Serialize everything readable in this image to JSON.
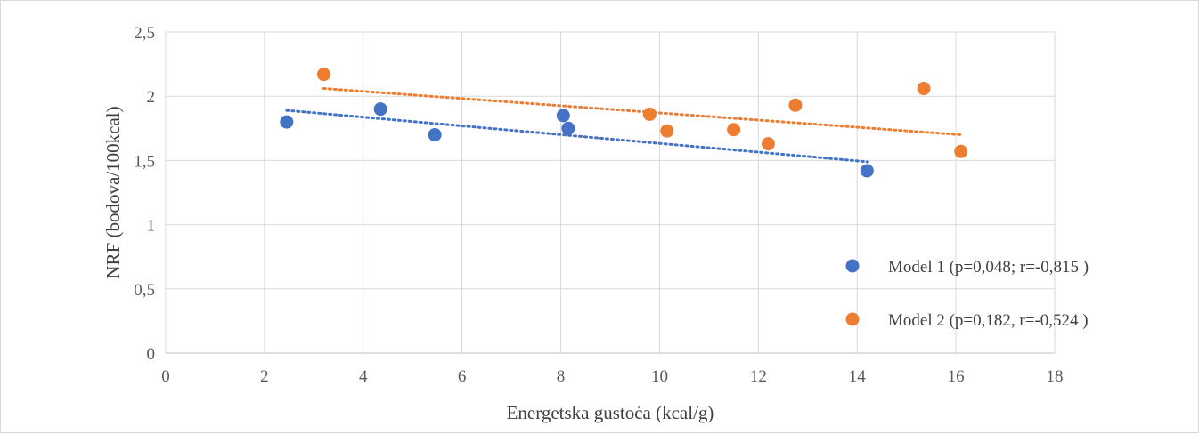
{
  "chart_data": {
    "type": "scatter",
    "xlabel": "Energetska gustoća (kcal/g)",
    "ylabel": "NRF (bodova/100kcal)",
    "xlim": [
      0,
      18
    ],
    "ylim": [
      0,
      2.5
    ],
    "x_ticks": [
      0,
      2,
      4,
      6,
      8,
      10,
      12,
      14,
      16,
      18
    ],
    "x_tick_labels": [
      "0",
      "2",
      "4",
      "6",
      "8",
      "10",
      "12",
      "14",
      "16",
      "18"
    ],
    "y_ticks": [
      0,
      0.5,
      1,
      1.5,
      2,
      2.5
    ],
    "y_tick_labels": [
      "0",
      "0,5",
      "1",
      "1,5",
      "2",
      "2,5"
    ],
    "grid": true,
    "legend_position": "bottom-right",
    "series": [
      {
        "name": "Model 1 (p=0,048; r=-0,815 )",
        "color": "#4472C4",
        "points": [
          {
            "x": 2.45,
            "y": 1.8
          },
          {
            "x": 4.35,
            "y": 1.9
          },
          {
            "x": 5.45,
            "y": 1.7
          },
          {
            "x": 8.05,
            "y": 1.85
          },
          {
            "x": 8.15,
            "y": 1.75
          },
          {
            "x": 14.2,
            "y": 1.42
          }
        ],
        "trendline": {
          "x": [
            2.45,
            14.2
          ],
          "y": [
            1.89,
            1.49
          ]
        }
      },
      {
        "name": "Model 2 (p=0,182, r=-0,524 )",
        "color": "#ED7D31",
        "points": [
          {
            "x": 3.2,
            "y": 2.17
          },
          {
            "x": 9.8,
            "y": 1.86
          },
          {
            "x": 10.15,
            "y": 1.73
          },
          {
            "x": 11.5,
            "y": 1.74
          },
          {
            "x": 12.2,
            "y": 1.63
          },
          {
            "x": 12.75,
            "y": 1.93
          },
          {
            "x": 15.35,
            "y": 2.06
          },
          {
            "x": 16.1,
            "y": 1.57
          }
        ],
        "trendline": {
          "x": [
            3.2,
            16.1
          ],
          "y": [
            2.06,
            1.7
          ]
        }
      }
    ]
  }
}
